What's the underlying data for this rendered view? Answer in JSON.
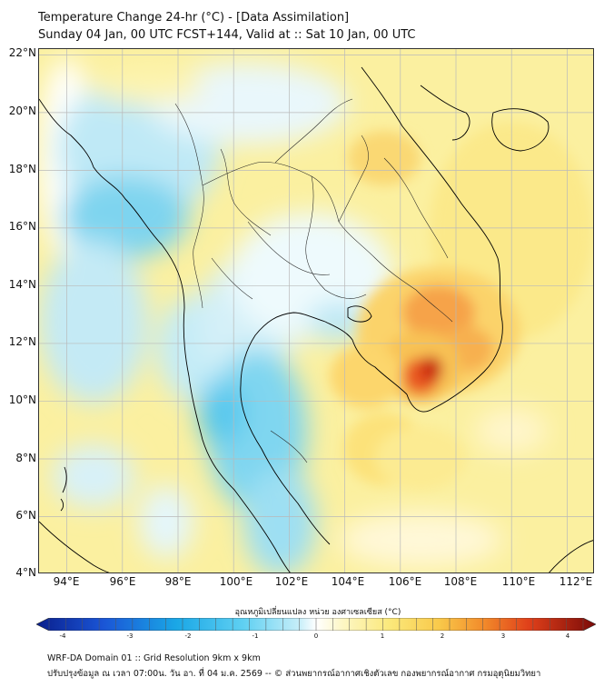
{
  "header": {
    "title_line1": "Temperature Change 24-hr (°C) - [Data Assimilation]",
    "title_line2": "Sunday 04 Jan, 00 UTC FCST+144, Valid at :: Sat 10 Jan, 00 UTC"
  },
  "map": {
    "latitude_labels": [
      "22°N",
      "20°N",
      "18°N",
      "16°N",
      "14°N",
      "12°N",
      "10°N",
      "8°N",
      "6°N",
      "4°N"
    ],
    "longitude_labels": [
      "94°E",
      "96°E",
      "98°E",
      "100°E",
      "102°E",
      "104°E",
      "106°E",
      "108°E",
      "110°E",
      "112°E"
    ],
    "lon_range": [
      93,
      113
    ],
    "lat_range": [
      4,
      22.2
    ]
  },
  "colorbar": {
    "label": "อุณหภูมิเปลี่ยนแปลง หน่วย องศาเซลเซียส (°C)",
    "ticks": [
      "-4",
      "-3",
      "-2",
      "-1",
      "0",
      "1",
      "2",
      "3",
      "4"
    ],
    "range": [
      -4,
      4
    ]
  },
  "footer": {
    "line1": "WRF-DA Domain 01 :: Grid Resolution 9km x 9km",
    "line2": "ปรับปรุงข้อมูล ณ เวลา 07:00น. วัน อา. ที่ 04 ม.ค. 2569 -- © ส่วนพยากรณ์อากาศเชิงตัวเลข กองพยากรณ์อากาศ กรมอุตุนิยมวิทยา"
  },
  "colors": {
    "warm_max": "#b40f00",
    "cool_max": "#0a2a9c",
    "neutral": "#ffffff",
    "grid": "#b9b9b9",
    "coastline": "#000000"
  }
}
